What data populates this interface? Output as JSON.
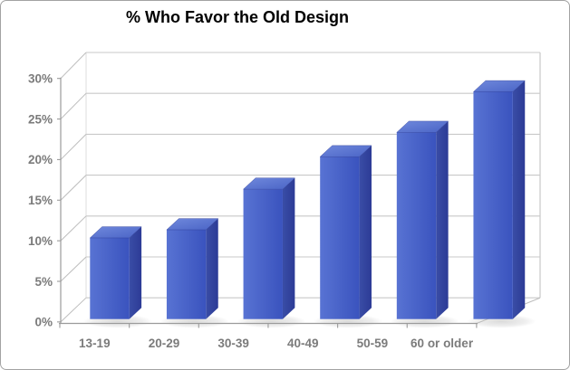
{
  "title": "% Who Favor the Old Design",
  "chart_data": {
    "type": "bar",
    "style": "3d-column-perspective",
    "title": "% Who Favor the Old Design",
    "categories": [
      "13-19",
      "20-29",
      "30-39",
      "40-49",
      "50-59",
      "60 or older"
    ],
    "values": [
      10,
      11,
      16,
      20,
      23,
      28
    ],
    "series": [
      {
        "name": "% Who Favor the Old Design",
        "values": [
          10,
          11,
          16,
          20,
          23,
          28
        ]
      }
    ],
    "xlabel": "",
    "ylabel": "",
    "ylim": [
      0,
      30
    ],
    "ytick_step": 5,
    "ytick_labels": [
      "0%",
      "5%",
      "10%",
      "15%",
      "20%",
      "25%",
      "30%"
    ],
    "grid": true,
    "legend": false
  },
  "colors": {
    "bar_front_light": "#5873d3",
    "bar_front_dark": "#3a53be",
    "bar_top_light": "#7089dc",
    "bar_top_dark": "#4a64c6",
    "bar_side_light": "#3a4da6",
    "bar_side_dark": "#2c3b96",
    "grid": "#c9c9c9",
    "axis": "#9b9b9b",
    "diagonal": "#bdbdbd",
    "wall_edge": "#c9c9c9",
    "label": "#7b7b7b",
    "title": "#000000",
    "shadow": "#bdbdbd",
    "border": "#a3a3a3",
    "background": "#ffffff"
  }
}
